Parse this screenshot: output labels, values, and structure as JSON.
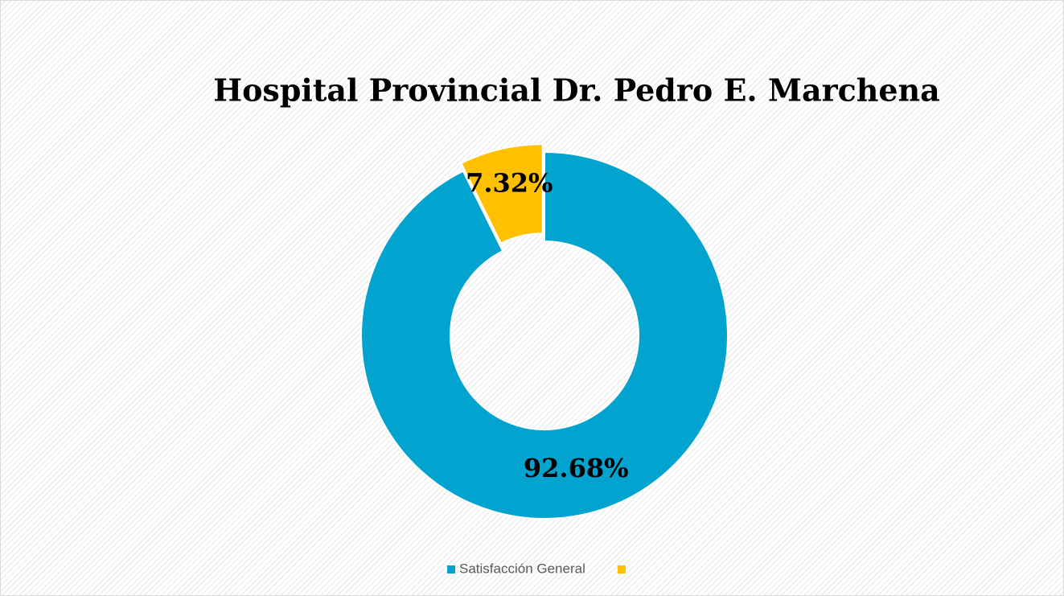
{
  "chart_data": {
    "type": "doughnut",
    "title": "Hospital Provincial Dr. Pedro E. Marchena",
    "categories": [
      "Satisfacción General",
      null
    ],
    "values": [
      92.68,
      7.32
    ],
    "value_labels": [
      "92.68%",
      "7.32%"
    ],
    "colors": [
      "#02a3cf",
      "#ffc000"
    ],
    "exploded": [
      false,
      true
    ],
    "legend": "bottom"
  }
}
